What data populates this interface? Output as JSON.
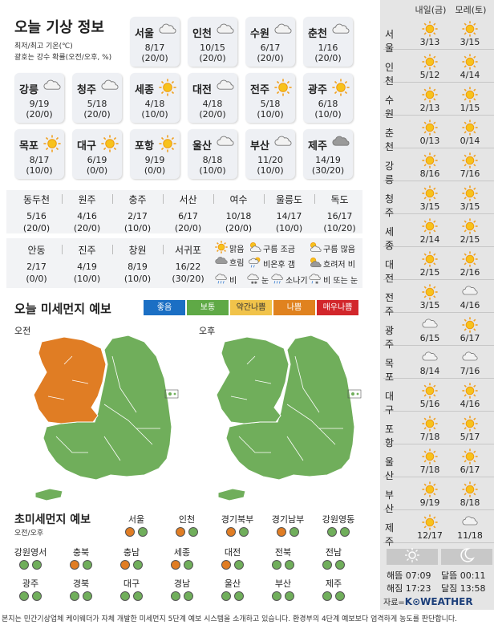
{
  "weather": {
    "title": "오늘 기상 정보",
    "subtitle_1": "최저/최고 기온(℃)",
    "subtitle_2": "괄호는 강수 확률(오전/오후, %)",
    "cities": [
      {
        "name": "서울",
        "icon": "cloud",
        "temp": "8/17",
        "prob": "(20/0)"
      },
      {
        "name": "인천",
        "icon": "cloud",
        "temp": "10/15",
        "prob": "(20/0)"
      },
      {
        "name": "수원",
        "icon": "cloud",
        "temp": "6/17",
        "prob": "(20/0)"
      },
      {
        "name": "춘천",
        "icon": "cloud",
        "temp": "1/16",
        "prob": "(20/0)"
      },
      {
        "name": "강릉",
        "icon": "cloud",
        "temp": "9/19",
        "prob": "(20/0)"
      },
      {
        "name": "청주",
        "icon": "cloud",
        "temp": "5/18",
        "prob": "(20/0)"
      },
      {
        "name": "세종",
        "icon": "sun",
        "temp": "4/18",
        "prob": "(10/0)"
      },
      {
        "name": "대전",
        "icon": "cloud",
        "temp": "4/18",
        "prob": "(20/0)"
      },
      {
        "name": "전주",
        "icon": "sun",
        "temp": "5/18",
        "prob": "(10/0)"
      },
      {
        "name": "광주",
        "icon": "sun",
        "temp": "6/18",
        "prob": "(10/0)"
      },
      {
        "name": "목포",
        "icon": "sun",
        "temp": "8/17",
        "prob": "(10/0)"
      },
      {
        "name": "대구",
        "icon": "sun",
        "temp": "6/19",
        "prob": "(0/0)"
      },
      {
        "name": "포항",
        "icon": "sun",
        "temp": "9/19",
        "prob": "(0/0)"
      },
      {
        "name": "울산",
        "icon": "cloud",
        "temp": "8/18",
        "prob": "(10/0)"
      },
      {
        "name": "부산",
        "icon": "cloud",
        "temp": "11/20",
        "prob": "(10/0)"
      },
      {
        "name": "제주",
        "icon": "cloud-dark",
        "temp": "14/19",
        "prob": "(30/20)"
      }
    ],
    "small_row_1": [
      {
        "name": "동두천",
        "temp": "5/16",
        "prob": "(20/0)"
      },
      {
        "name": "원주",
        "temp": "4/16",
        "prob": "(20/0)"
      },
      {
        "name": "충주",
        "temp": "2/17",
        "prob": "(10/0)"
      },
      {
        "name": "서산",
        "temp": "6/17",
        "prob": "(20/0)"
      },
      {
        "name": "여수",
        "temp": "10/18",
        "prob": "(20/0)"
      },
      {
        "name": "울릉도",
        "temp": "14/17",
        "prob": "(10/0)"
      },
      {
        "name": "독도",
        "temp": "16/17",
        "prob": "(10/20)"
      }
    ],
    "small_row_2": [
      {
        "name": "안동",
        "temp": "2/17",
        "prob": "(0/0)"
      },
      {
        "name": "진주",
        "temp": "4/19",
        "prob": "(10/0)"
      },
      {
        "name": "창원",
        "temp": "8/19",
        "prob": "(10/0)"
      },
      {
        "name": "서귀포",
        "temp": "16/22",
        "prob": "(30/20)"
      }
    ],
    "legend": [
      {
        "icon": "sun",
        "label": "맑음"
      },
      {
        "icon": "sun-cloud",
        "label": "구름 조금"
      },
      {
        "icon": "cloud-sun",
        "label": "구름 많음"
      },
      {
        "icon": "cloud-dark",
        "label": "흐림"
      },
      {
        "icon": "rain-sun",
        "label": "비온후 갬"
      },
      {
        "icon": "sun-dark-cloud",
        "label": "흐려저 비"
      },
      {
        "icon": "rain",
        "label": "비"
      },
      {
        "icon": "snow",
        "label": "눈"
      },
      {
        "icon": "shower",
        "label": "소나기"
      },
      {
        "icon": "rain-snow",
        "label": "비 또는 눈"
      }
    ]
  },
  "dust": {
    "title": "오늘 미세먼지 예보",
    "levels": [
      {
        "label": "좋음",
        "color": "#1b6fc4"
      },
      {
        "label": "보통",
        "color": "#5fa946"
      },
      {
        "label": "약간나쁨",
        "color": "#f1c34a"
      },
      {
        "label": "나쁨",
        "color": "#e0821f"
      },
      {
        "label": "매우나쁨",
        "color": "#d2262b"
      }
    ],
    "am_label": "오전",
    "pm_label": "오후",
    "colors": {
      "good": "#70ae5b",
      "bad": "#e07d24"
    }
  },
  "fine_dust": {
    "title": "초미세먼지 예보",
    "subtitle": "오전/오후",
    "rows": [
      [
        {
          "name": "서울",
          "am": "bad",
          "pm": "normal"
        },
        {
          "name": "인천",
          "am": "bad",
          "pm": "normal"
        },
        {
          "name": "경기북부",
          "am": "bad",
          "pm": "normal"
        },
        {
          "name": "경기남부",
          "am": "bad",
          "pm": "normal"
        },
        {
          "name": "강원영동",
          "am": "normal",
          "pm": "normal"
        }
      ],
      [
        {
          "name": "강원영서",
          "am": "normal",
          "pm": "normal"
        },
        {
          "name": "충북",
          "am": "bad",
          "pm": "normal"
        },
        {
          "name": "충남",
          "am": "bad",
          "pm": "normal"
        },
        {
          "name": "세종",
          "am": "bad",
          "pm": "normal"
        },
        {
          "name": "대전",
          "am": "bad",
          "pm": "normal"
        },
        {
          "name": "전북",
          "am": "normal",
          "pm": "normal"
        },
        {
          "name": "전남",
          "am": "normal",
          "pm": "normal"
        }
      ],
      [
        {
          "name": "광주",
          "am": "normal",
          "pm": "normal"
        },
        {
          "name": "경북",
          "am": "normal",
          "pm": "normal"
        },
        {
          "name": "대구",
          "am": "normal",
          "pm": "normal"
        },
        {
          "name": "경남",
          "am": "normal",
          "pm": "normal"
        },
        {
          "name": "울산",
          "am": "normal",
          "pm": "normal"
        },
        {
          "name": "부산",
          "am": "normal",
          "pm": "normal"
        },
        {
          "name": "제주",
          "am": "normal",
          "pm": "normal"
        }
      ]
    ],
    "colors": {
      "bad": "#e07d24",
      "normal": "#70ae5b"
    }
  },
  "forecast": {
    "day1": "내일(금)",
    "day2": "모레(토)",
    "rows": [
      {
        "city": "서울",
        "d1_icon": "sun",
        "d1": "3/13",
        "d2_icon": "sun",
        "d2": "3/15"
      },
      {
        "city": "인천",
        "d1_icon": "sun",
        "d1": "5/12",
        "d2_icon": "sun",
        "d2": "4/14"
      },
      {
        "city": "수원",
        "d1_icon": "sun",
        "d1": "2/13",
        "d2_icon": "sun",
        "d2": "1/15"
      },
      {
        "city": "춘천",
        "d1_icon": "sun",
        "d1": "0/13",
        "d2_icon": "sun",
        "d2": "0/14"
      },
      {
        "city": "강릉",
        "d1_icon": "sun",
        "d1": "8/16",
        "d2_icon": "sun",
        "d2": "7/16"
      },
      {
        "city": "청주",
        "d1_icon": "sun",
        "d1": "3/15",
        "d2_icon": "sun",
        "d2": "3/15"
      },
      {
        "city": "세종",
        "d1_icon": "sun",
        "d1": "2/14",
        "d2_icon": "sun",
        "d2": "2/15"
      },
      {
        "city": "대전",
        "d1_icon": "sun",
        "d1": "2/15",
        "d2_icon": "sun",
        "d2": "2/16"
      },
      {
        "city": "전주",
        "d1_icon": "sun",
        "d1": "3/15",
        "d2_icon": "cloud",
        "d2": "4/16"
      },
      {
        "city": "광주",
        "d1_icon": "cloud",
        "d1": "6/15",
        "d2_icon": "sun",
        "d2": "6/17"
      },
      {
        "city": "목포",
        "d1_icon": "cloud",
        "d1": "8/14",
        "d2_icon": "cloud",
        "d2": "7/16"
      },
      {
        "city": "대구",
        "d1_icon": "sun",
        "d1": "5/16",
        "d2_icon": "sun",
        "d2": "4/16"
      },
      {
        "city": "포항",
        "d1_icon": "sun",
        "d1": "7/18",
        "d2_icon": "sun",
        "d2": "5/17"
      },
      {
        "city": "울산",
        "d1_icon": "sun",
        "d1": "7/18",
        "d2_icon": "sun",
        "d2": "6/17"
      },
      {
        "city": "부산",
        "d1_icon": "sun",
        "d1": "9/19",
        "d2_icon": "sun",
        "d2": "8/18"
      },
      {
        "city": "제주",
        "d1_icon": "sun",
        "d1": "12/17",
        "d2_icon": "cloud",
        "d2": "11/18"
      }
    ],
    "sun_icon": "sun-outline-icon",
    "moon_icon": "crescent-moon-icon",
    "sunrise": "해뜸 07:09",
    "sunset": "해짐 17:23",
    "moonrise": "달뜸 00:11",
    "moonset": "달짐 13:58",
    "source_prefix": "자료=",
    "source_name": "K⊙WEATHER"
  },
  "footer": {
    "text": "본지는 민간기상업체 케이웨더가 자체 개발한 미세먼지 5단계 예보 시스템을 소개하고 있습니다. 환경부의 4단계 예보보다 엄격하게 농도를 판단합니다."
  }
}
